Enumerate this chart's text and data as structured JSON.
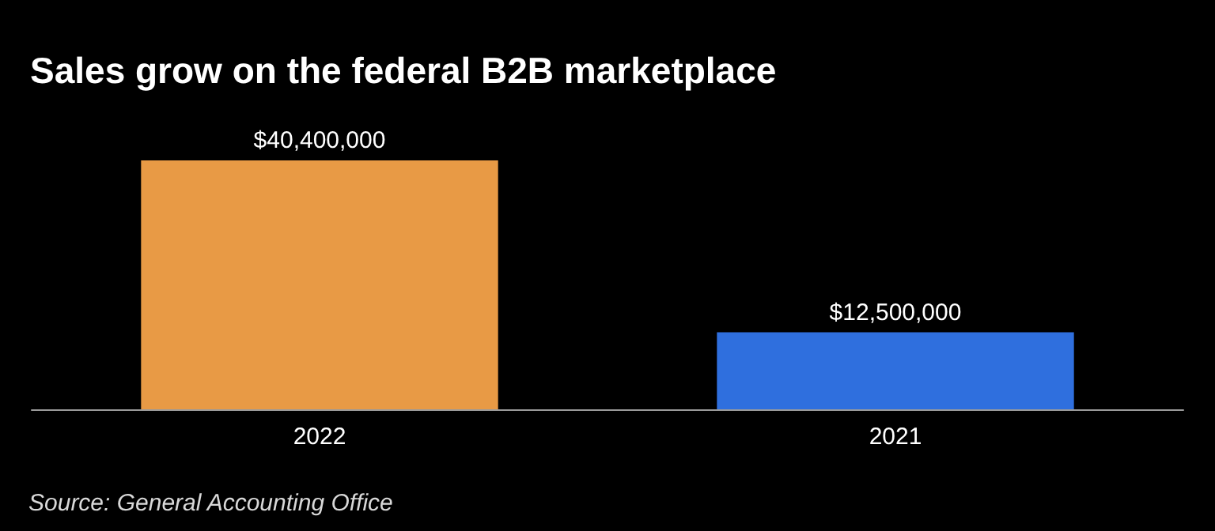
{
  "chart_data": {
    "type": "bar",
    "title": "Sales grow on the federal B2B marketplace",
    "categories": [
      "2022",
      "2021"
    ],
    "values": [
      40400000,
      12500000
    ],
    "colors": [
      "#e89a45",
      "#2f6fde"
    ],
    "value_labels": [
      "$40,400,000",
      "$12,500,000"
    ],
    "tick_labels": "x",
    "grid": false,
    "annotations": [
      "Source: General Accounting Office"
    ]
  }
}
